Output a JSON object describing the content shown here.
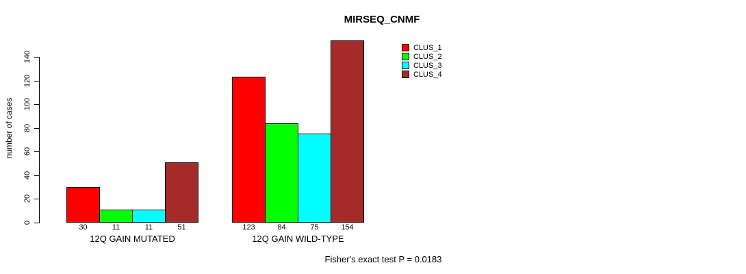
{
  "title": "MIRSEQ_CNMF",
  "y_axis": {
    "label": "number of cases"
  },
  "footer": "Fisher's exact test P = 0.0183",
  "chart_data": {
    "type": "bar",
    "title": "MIRSEQ_CNMF",
    "ylabel": "number of cases",
    "xlabel": "",
    "categories": [
      "12Q GAIN MUTATED",
      "12Q GAIN WILD-TYPE"
    ],
    "series": [
      {
        "name": "CLUS_1",
        "color": "#ff0000",
        "values": [
          30,
          123
        ]
      },
      {
        "name": "CLUS_2",
        "color": "#00ff00",
        "values": [
          11,
          84
        ]
      },
      {
        "name": "CLUS_3",
        "color": "#00ffff",
        "values": [
          11,
          75
        ]
      },
      {
        "name": "CLUS_4",
        "color": "#a52a2a",
        "values": [
          51,
          154
        ]
      }
    ],
    "value_labels_mutated": [
      30,
      11,
      11,
      51
    ],
    "value_labels_wild_type": [
      123,
      84,
      75,
      154
    ],
    "ylim": [
      0,
      140
    ],
    "yticks": [
      0,
      20,
      40,
      60,
      80,
      100,
      120,
      140
    ],
    "grid": false,
    "legend_position": "top-right-inside",
    "annotation": "Fisher's exact test P = 0.0183"
  }
}
